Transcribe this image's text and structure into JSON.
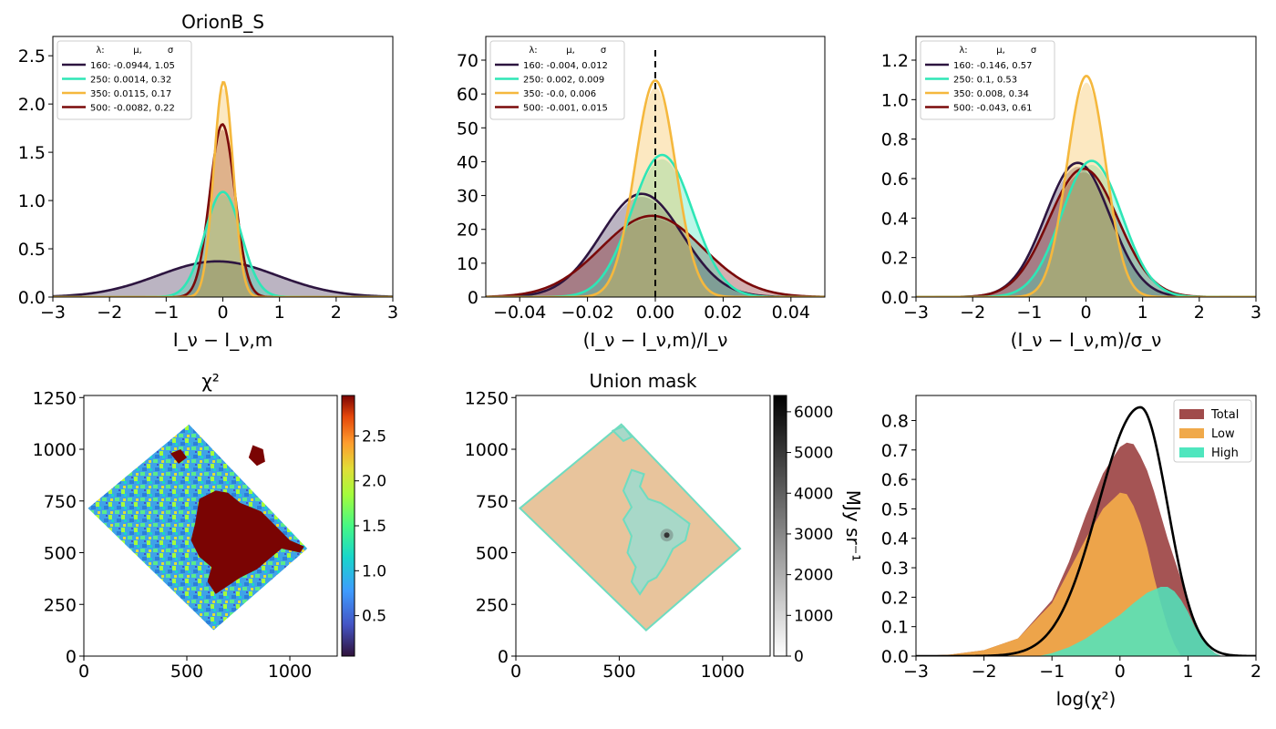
{
  "figure_title": "OrionB_S",
  "chart_data": [
    {
      "id": "hist_abs",
      "type": "line",
      "title": "OrionB_S",
      "xlabel": "I_ν − I_ν,m",
      "ylabel": "",
      "xlim": [
        -3,
        3
      ],
      "ylim": [
        0,
        2.7
      ],
      "xticks": [
        -3,
        -2,
        -1,
        0,
        1,
        2,
        3
      ],
      "xtick_labels": [
        "−3",
        "−2",
        "−1",
        "0",
        "1",
        "2",
        "3"
      ],
      "yticks": [
        0,
        0.5,
        1.0,
        1.5,
        2.0,
        2.5
      ],
      "ytick_labels": [
        "0.0",
        "0.5",
        "1.0",
        "1.5",
        "2.0",
        "2.5"
      ],
      "legend_header": [
        "λ:",
        "μ,",
        "σ"
      ],
      "legend_position": "upper-left",
      "dashed_zero_line": false,
      "series": [
        {
          "name": "160: -0.0944,  1.05",
          "color": "#2d1540",
          "mu": -0.0944,
          "sigma": 1.05,
          "peak": 0.37
        },
        {
          "name": "250: 0.0014,  0.32",
          "color": "#2ee6b6",
          "mu": 0.0014,
          "sigma": 0.32,
          "peak": 1.09
        },
        {
          "name": "350: 0.0115,  0.17",
          "color": "#f5b83d",
          "mu": 0.0115,
          "sigma": 0.17,
          "peak": 2.23
        },
        {
          "name": "500: -0.0082,  0.22",
          "color": "#7a0a0a",
          "mu": -0.0082,
          "sigma": 0.22,
          "peak": 1.79
        }
      ]
    },
    {
      "id": "hist_rel",
      "type": "line",
      "title": "",
      "xlabel": "(I_ν − I_ν,m)/I_ν",
      "ylabel": "",
      "xlim": [
        -0.05,
        0.05
      ],
      "ylim": [
        0,
        77
      ],
      "xticks": [
        -0.04,
        -0.02,
        0,
        0.02,
        0.04
      ],
      "xtick_labels": [
        "−0.04",
        "−0.02",
        "0.00",
        "0.02",
        "0.04"
      ],
      "yticks": [
        0,
        10,
        20,
        30,
        40,
        50,
        60,
        70
      ],
      "ytick_labels": [
        "0",
        "10",
        "20",
        "30",
        "40",
        "50",
        "60",
        "70"
      ],
      "legend_header": [
        "λ:",
        "μ,",
        "σ"
      ],
      "legend_position": "upper-left",
      "dashed_zero_line": true,
      "series": [
        {
          "name": "160: -0.004,  0.012",
          "color": "#2d1540",
          "mu": -0.004,
          "sigma": 0.012,
          "peak": 30.5
        },
        {
          "name": "250: 0.002,  0.009",
          "color": "#2ee6b6",
          "mu": 0.002,
          "sigma": 0.009,
          "peak": 42
        },
        {
          "name": "350: -0.0,  0.006",
          "color": "#f5b83d",
          "mu": 0.0,
          "sigma": 0.006,
          "peak": 64
        },
        {
          "name": "500: -0.001,  0.015",
          "color": "#7a0a0a",
          "mu": -0.001,
          "sigma": 0.015,
          "peak": 24
        }
      ]
    },
    {
      "id": "hist_sig",
      "type": "line",
      "title": "",
      "xlabel": "(I_ν − I_ν,m)/σ_ν",
      "ylabel": "",
      "xlim": [
        -3,
        3
      ],
      "ylim": [
        0,
        1.32
      ],
      "xticks": [
        -3,
        -2,
        -1,
        0,
        1,
        2,
        3
      ],
      "xtick_labels": [
        "−3",
        "−2",
        "−1",
        "0",
        "1",
        "2",
        "3"
      ],
      "yticks": [
        0,
        0.2,
        0.4,
        0.6,
        0.8,
        1.0,
        1.2
      ],
      "ytick_labels": [
        "0.0",
        "0.2",
        "0.4",
        "0.6",
        "0.8",
        "1.0",
        "1.2"
      ],
      "legend_header": [
        "λ:",
        "μ,",
        "σ"
      ],
      "legend_position": "upper-left",
      "dashed_zero_line": false,
      "series": [
        {
          "name": "160: -0.146,  0.57",
          "color": "#2d1540",
          "mu": -0.146,
          "sigma": 0.57,
          "peak": 0.68
        },
        {
          "name": "250: 0.1,  0.53",
          "color": "#2ee6b6",
          "mu": 0.1,
          "sigma": 0.53,
          "peak": 0.69
        },
        {
          "name": "350: 0.008,  0.34",
          "color": "#f5b83d",
          "mu": 0.008,
          "sigma": 0.34,
          "peak": 1.12
        },
        {
          "name": "500: -0.043,  0.61",
          "color": "#7a0a0a",
          "mu": -0.043,
          "sigma": 0.61,
          "peak": 0.65
        }
      ]
    },
    {
      "id": "chi2_map",
      "type": "heatmap",
      "title": "χ²",
      "xlim": [
        0,
        1230
      ],
      "ylim": [
        0,
        1260
      ],
      "xticks": [
        0,
        500,
        1000
      ],
      "xtick_labels": [
        "0",
        "500",
        "1000"
      ],
      "yticks": [
        0,
        250,
        500,
        750,
        1000,
        1250
      ],
      "ytick_labels": [
        "0",
        "250",
        "500",
        "750",
        "1000",
        "1250"
      ],
      "colorbar": {
        "colormap": "turbo",
        "range": [
          0.05,
          2.95
        ],
        "ticks": [
          0.5,
          1.0,
          1.5,
          2.0,
          2.5
        ],
        "tick_labels": [
          "0.5",
          "1.0",
          "1.5",
          "2.0",
          "2.5"
        ],
        "label": ""
      },
      "footprint": [
        [
          20,
          715
        ],
        [
          510,
          1120
        ],
        [
          1085,
          520
        ],
        [
          630,
          125
        ]
      ]
    },
    {
      "id": "union_mask",
      "type": "heatmap",
      "title": "Union mask",
      "xlim": [
        0,
        1230
      ],
      "ylim": [
        0,
        1260
      ],
      "xticks": [
        0,
        500,
        1000
      ],
      "xtick_labels": [
        "0",
        "500",
        "1000"
      ],
      "yticks": [
        0,
        250,
        500,
        750,
        1000,
        1250
      ],
      "ytick_labels": [
        "0",
        "250",
        "500",
        "750",
        "1000",
        "1250"
      ],
      "colorbar": {
        "colormap": "gray_r",
        "range": [
          0,
          6400
        ],
        "ticks": [
          0,
          1000,
          2000,
          3000,
          4000,
          5000,
          6000
        ],
        "tick_labels": [
          "0",
          "1000",
          "2000",
          "3000",
          "4000",
          "5000",
          "6000"
        ],
        "label": "MJy sr⁻¹"
      },
      "footprint": [
        [
          20,
          715
        ],
        [
          510,
          1120
        ],
        [
          1085,
          520
        ],
        [
          630,
          125
        ]
      ],
      "low_color": "#e8c49c",
      "high_color": "#a8d8c8",
      "contour_color": "#6fdcc0"
    },
    {
      "id": "chi2_hist",
      "type": "area",
      "title": "",
      "xlabel": "log(χ²)",
      "ylabel": "",
      "xlim": [
        -3,
        2
      ],
      "ylim": [
        0,
        0.885
      ],
      "xticks": [
        -3,
        -2,
        -1,
        0,
        1,
        2
      ],
      "xtick_labels": [
        "−3",
        "−2",
        "−1",
        "0",
        "1",
        "2"
      ],
      "yticks": [
        0,
        0.1,
        0.2,
        0.3,
        0.4,
        0.5,
        0.6,
        0.7,
        0.8
      ],
      "ytick_labels": [
        "0.0",
        "0.1",
        "0.2",
        "0.3",
        "0.4",
        "0.5",
        "0.6",
        "0.7",
        "0.8"
      ],
      "legend_position": "upper-right",
      "series": [
        {
          "name": "Total",
          "color": "#a04b4b",
          "x": [
            -3,
            -2.5,
            -2,
            -1.5,
            -1,
            -0.75,
            -0.5,
            -0.25,
            0,
            0.1,
            0.2,
            0.3,
            0.4,
            0.5,
            0.6,
            0.7,
            0.8,
            0.9,
            1.0,
            1.1,
            1.2,
            1.3,
            1.4,
            1.5
          ],
          "y": [
            0.0,
            0.005,
            0.02,
            0.06,
            0.19,
            0.32,
            0.48,
            0.62,
            0.71,
            0.725,
            0.72,
            0.68,
            0.63,
            0.56,
            0.48,
            0.4,
            0.33,
            0.26,
            0.19,
            0.12,
            0.07,
            0.03,
            0.01,
            0.0
          ]
        },
        {
          "name": "Low",
          "color": "#f0a94a",
          "x": [
            -3,
            -2.5,
            -2,
            -1.5,
            -1,
            -0.75,
            -0.5,
            -0.25,
            0,
            0.1,
            0.2,
            0.3,
            0.4,
            0.5,
            0.6,
            0.7,
            0.8,
            0.9
          ],
          "y": [
            0.0,
            0.005,
            0.02,
            0.06,
            0.18,
            0.29,
            0.4,
            0.5,
            0.555,
            0.55,
            0.51,
            0.45,
            0.37,
            0.27,
            0.18,
            0.1,
            0.04,
            0.0
          ]
        },
        {
          "name": "High",
          "color": "#4fe6be",
          "x": [
            -1.2,
            -1,
            -0.75,
            -0.5,
            -0.25,
            0,
            0.2,
            0.4,
            0.6,
            0.7,
            0.8,
            0.9,
            1.0,
            1.1,
            1.2,
            1.3,
            1.4,
            1.5
          ],
          "y": [
            0.0,
            0.01,
            0.03,
            0.06,
            0.1,
            0.14,
            0.18,
            0.215,
            0.235,
            0.235,
            0.22,
            0.19,
            0.15,
            0.1,
            0.06,
            0.03,
            0.01,
            0.0
          ]
        }
      ],
      "curve": {
        "color": "#000000",
        "mu": 0.3,
        "sigma_left": 0.62,
        "sigma_right": 0.4,
        "peak": 0.845
      }
    }
  ]
}
